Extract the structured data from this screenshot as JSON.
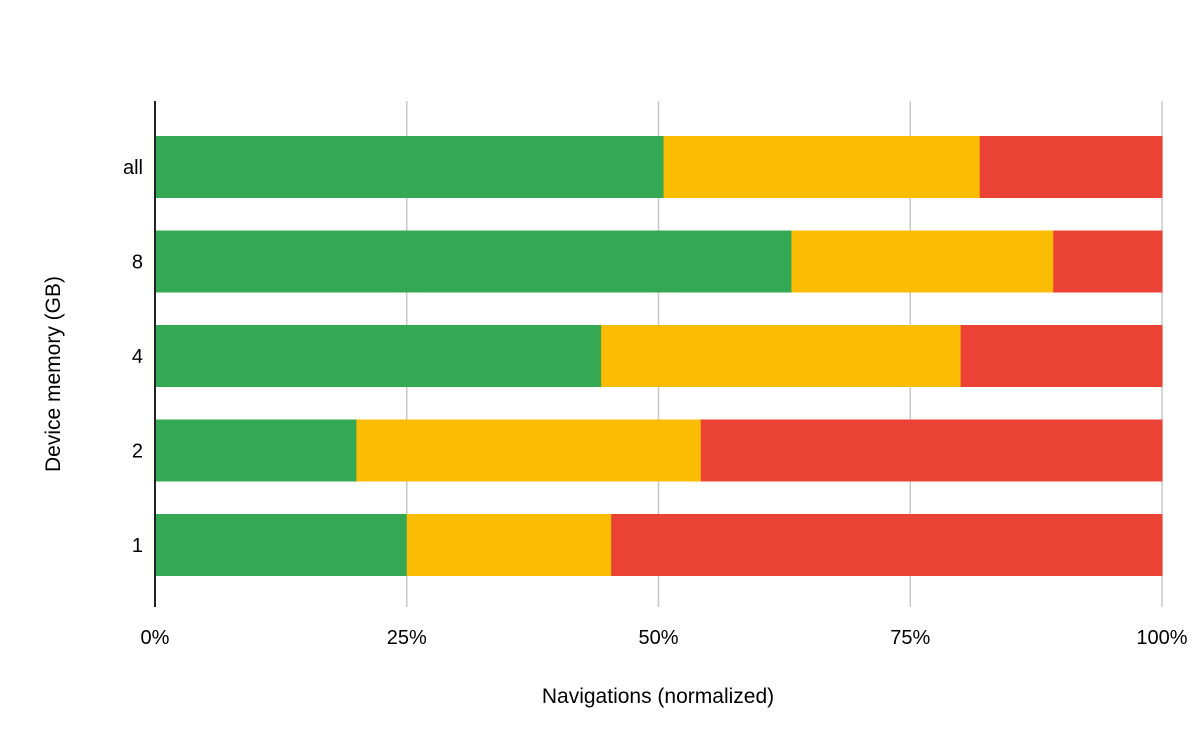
{
  "chart_data": {
    "type": "bar",
    "orientation": "horizontal",
    "stacked": true,
    "title": "",
    "xlabel": "Navigations (normalized)",
    "ylabel": "Device memory (GB)",
    "categories": [
      "all",
      "8",
      "4",
      "2",
      "1"
    ],
    "x_ticks": [
      "0%",
      "25%",
      "50%",
      "75%",
      "100%"
    ],
    "xlim": [
      0,
      100
    ],
    "grid": "vertical",
    "legend": "none",
    "series": [
      {
        "color": "#34a853",
        "values": [
          50.5,
          63.2,
          44.3,
          20.0,
          25.0
        ]
      },
      {
        "color": "#fbbc04",
        "values": [
          31.4,
          26.0,
          35.7,
          34.2,
          20.3
        ]
      },
      {
        "color": "#ea4335",
        "values": [
          18.1,
          10.8,
          20.0,
          45.8,
          54.7
        ]
      }
    ]
  }
}
